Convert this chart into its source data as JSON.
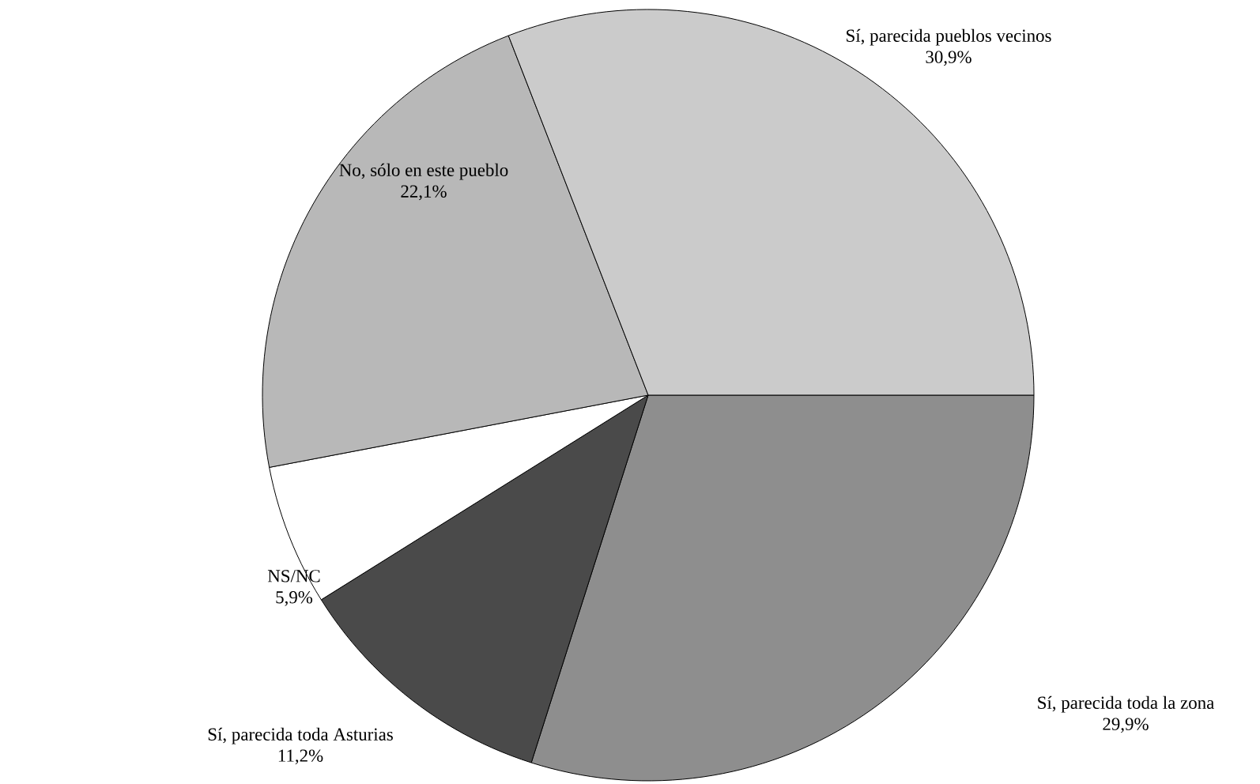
{
  "chart_data": {
    "type": "pie",
    "categories": [
      "Sí, parecida toda la zona",
      "Sí, parecida toda Asturias",
      "NS/NC",
      "No, sólo en este pueblo",
      "Sí, parecida pueblos vecinos"
    ],
    "values": [
      29.9,
      11.2,
      5.9,
      22.1,
      30.9
    ],
    "colors": [
      "#8e8e8e",
      "#4a4a4a",
      "#ffffff",
      "#b8b8b8",
      "#cbcbcb"
    ],
    "value_labels": [
      "29,9%",
      "11,2%",
      "5,9%",
      "22,1%",
      "30,9%"
    ]
  }
}
